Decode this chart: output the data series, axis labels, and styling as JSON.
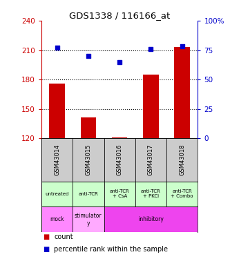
{
  "title": "GDS1338 / 116166_at",
  "samples": [
    "GSM43014",
    "GSM43015",
    "GSM43016",
    "GSM43017",
    "GSM43018"
  ],
  "count_values": [
    176,
    141,
    121,
    185,
    213
  ],
  "percentile_values": [
    77,
    70,
    65,
    76,
    78
  ],
  "count_base": 120,
  "ylim_left": [
    120,
    240
  ],
  "ylim_right": [
    0,
    100
  ],
  "yticks_left": [
    120,
    150,
    180,
    210,
    240
  ],
  "yticks_right": [
    0,
    25,
    50,
    75,
    100
  ],
  "ytick_labels_right": [
    "0",
    "25",
    "50",
    "75",
    "100%"
  ],
  "bar_color": "#cc0000",
  "scatter_color": "#0000cc",
  "dotted_line_values": [
    150,
    180,
    210
  ],
  "agent_labels": [
    "untreated",
    "anti-TCR",
    "anti-TCR\n+ CsA",
    "anti-TCR\n+ PKCi",
    "anti-TCR\n+ Combo"
  ],
  "protocol_mock_color": "#ff88ff",
  "protocol_stimulatory_color": "#ffaaff",
  "protocol_inhibitory_color": "#ee44ee",
  "agent_color": "#ccffcc",
  "sample_bg_color": "#cccccc",
  "bar_width": 0.5,
  "left_ylabel_color": "#cc0000",
  "right_ylabel_color": "#0000cc",
  "legend_count_color": "#cc0000",
  "legend_pct_color": "#0000cc"
}
